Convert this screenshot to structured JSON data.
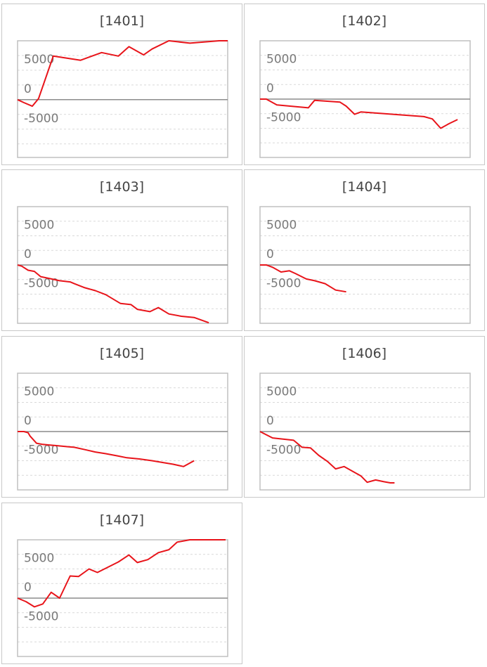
{
  "colors": {
    "line": "#e8141a",
    "zero_line": "#8c8c8c",
    "grid": "#d9d9d9",
    "frame": "#c0c0c0"
  },
  "chart_data": [
    {
      "type": "line",
      "title": "[1401]",
      "yticks": [
        5000,
        0,
        -5000
      ],
      "ylim": [
        -9800,
        10000
      ],
      "grid": true,
      "x": [
        0,
        3,
        7,
        10,
        17,
        30,
        40,
        48,
        53,
        60,
        64,
        72,
        82,
        96,
        100
      ],
      "y": [
        0,
        -500,
        -1100,
        200,
        7400,
        6700,
        8000,
        7400,
        9000,
        7600,
        8600,
        10000,
        9600,
        10000,
        10000
      ]
    },
    {
      "type": "line",
      "title": "[1402]",
      "yticks": [
        5000,
        0,
        -5000
      ],
      "ylim": [
        -10000,
        10000
      ],
      "grid": true,
      "x": [
        0,
        3,
        8,
        23,
        26,
        38,
        41,
        45,
        48,
        78,
        82,
        86,
        90,
        94
      ],
      "y": [
        0,
        0,
        -1000,
        -1500,
        -200,
        -500,
        -1200,
        -2600,
        -2200,
        -3000,
        -3400,
        -5000,
        -4200,
        -3500
      ]
    },
    {
      "type": "line",
      "title": "[1403]",
      "yticks": [
        5000,
        0,
        -5000
      ],
      "ylim": [
        -10000,
        10000
      ],
      "grid": true,
      "x": [
        0,
        2,
        5,
        8,
        11,
        15,
        20,
        25,
        27,
        32,
        37,
        42,
        49,
        54,
        57,
        63,
        67,
        72,
        78,
        84,
        91
      ],
      "y": [
        0,
        -200,
        -900,
        -1100,
        -2000,
        -2300,
        -2700,
        -2900,
        -3200,
        -3900,
        -4400,
        -5100,
        -6600,
        -6800,
        -7600,
        -8000,
        -7300,
        -8400,
        -8800,
        -9000,
        -9900
      ]
    },
    {
      "type": "line",
      "title": "[1404]",
      "yticks": [
        5000,
        0,
        -5000
      ],
      "ylim": [
        -10000,
        10000
      ],
      "grid": true,
      "x": [
        0,
        3,
        6,
        10,
        14,
        17,
        22,
        26,
        31,
        36,
        41
      ],
      "y": [
        0,
        0,
        -400,
        -1200,
        -1000,
        -1500,
        -2400,
        -2700,
        -3200,
        -4300,
        -4600
      ]
    },
    {
      "type": "line",
      "title": "[1405]",
      "yticks": [
        5000,
        0,
        -5000
      ],
      "ylim": [
        -10000,
        10000
      ],
      "grid": true,
      "x": [
        0,
        3,
        5,
        6,
        9,
        12,
        15,
        18,
        21,
        24,
        27,
        32,
        37,
        42,
        48,
        52,
        58,
        64,
        69,
        74,
        79,
        84
      ],
      "y": [
        0,
        0,
        -200,
        -800,
        -2000,
        -2200,
        -2300,
        -2400,
        -2500,
        -2600,
        -2700,
        -3100,
        -3500,
        -3800,
        -4200,
        -4500,
        -4700,
        -5000,
        -5300,
        -5600,
        -6000,
        -5000
      ]
    },
    {
      "type": "line",
      "title": "[1406]",
      "yticks": [
        5000,
        0,
        -5000
      ],
      "ylim": [
        -10000,
        10000
      ],
      "grid": true,
      "x": [
        0,
        6,
        16,
        20,
        24,
        28,
        32,
        36,
        40,
        48,
        51,
        55,
        59,
        62,
        64
      ],
      "y": [
        0,
        -1100,
        -1500,
        -2700,
        -2800,
        -4100,
        -5100,
        -6400,
        -6000,
        -7600,
        -8700,
        -8300,
        -8600,
        -8800,
        -8800
      ]
    },
    {
      "type": "line",
      "title": "[1407]",
      "yticks": [
        5000,
        0,
        -5000
      ],
      "ylim": [
        -10000,
        10000
      ],
      "grid": true,
      "x": [
        0,
        4,
        8,
        12,
        16,
        20,
        25,
        29,
        34,
        38,
        48,
        53,
        57,
        62,
        67,
        72,
        76,
        82,
        88,
        93,
        99
      ],
      "y": [
        0,
        -600,
        -1500,
        -1000,
        1000,
        0,
        3800,
        3700,
        5000,
        4400,
        6200,
        7400,
        6100,
        6600,
        7800,
        8300,
        9600,
        10000,
        10000,
        10000,
        10000
      ]
    }
  ]
}
